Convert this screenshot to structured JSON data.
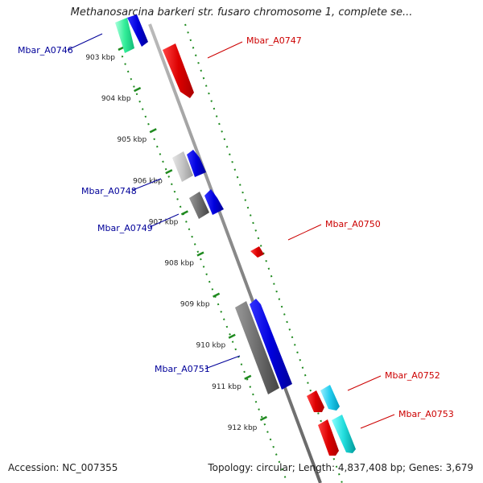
{
  "title": "Methanosarcina barkeri str. fusaro chromosome 1, complete se...",
  "accession_text": "Accession: NC_007355",
  "summary_text": "Topology: circular; Length: 4,837,408 bp; Genes: 3,679",
  "colors": {
    "backbone": "#999999",
    "track_dots": "#1f8a1f",
    "forward_label": "#cc0000",
    "reverse_label": "#000099"
  },
  "ticks": [
    "903 kbp",
    "904 kbp",
    "905 kbp",
    "906 kbp",
    "907 kbp",
    "908 kbp",
    "909 kbp",
    "910 kbp",
    "911 kbp",
    "912 kbp"
  ],
  "genes": [
    {
      "label": "Mbar_A0746",
      "strand": "reverse"
    },
    {
      "label": "Mbar_A0747",
      "strand": "forward"
    },
    {
      "label": "Mbar_A0748",
      "strand": "reverse"
    },
    {
      "label": "Mbar_A0749",
      "strand": "reverse"
    },
    {
      "label": "Mbar_A0750",
      "strand": "forward"
    },
    {
      "label": "Mbar_A0751",
      "strand": "reverse"
    },
    {
      "label": "Mbar_A0752",
      "strand": "forward"
    },
    {
      "label": "Mbar_A0753",
      "strand": "forward"
    }
  ]
}
